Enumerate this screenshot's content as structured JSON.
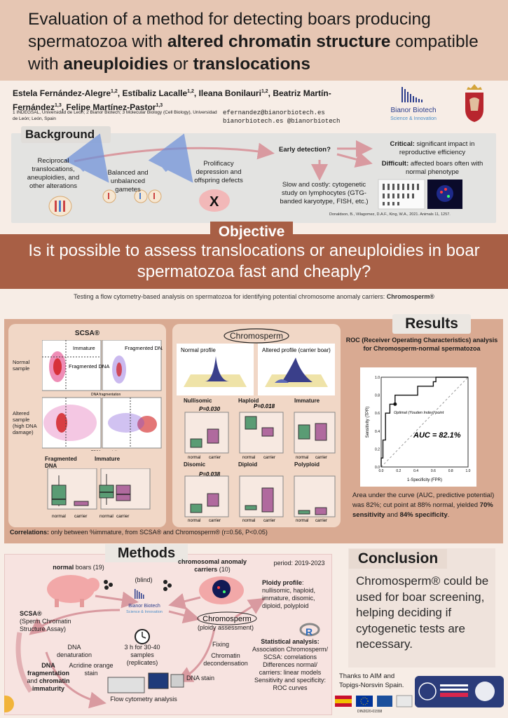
{
  "title": {
    "part1": "Evaluation of a method for detecting boars producing spermatozoa with ",
    "bold1": "altered chromatin structure",
    "part2": " compatible with ",
    "bold2": "aneuploidies",
    "part3": " or ",
    "bold3": "translocations"
  },
  "authors": {
    "list": [
      {
        "name": "Estela Fernández-Alegre",
        "aff": "1,2"
      },
      {
        "name": "Estíbaliz Lacalle",
        "aff": "1,2"
      },
      {
        "name": "Ileana Bonilauri",
        "aff": "1,2"
      },
      {
        "name": "Beatriz Martín-Fernández",
        "aff": "1,3"
      },
      {
        "name": "Felipe Martínez-Pastor",
        "aff": "1,3"
      }
    ],
    "affiliations": "1 INDEGSAL, Universidad de León; 2 Bianor Biotech; 3 Molecular Biology (Cell Biology), Universidad de León; León, Spain",
    "email1": "efernandez@bianorbiotech.es",
    "email2": "bianorbiotech.es @bianorbiotech"
  },
  "logos": {
    "bianor_name": "Bianor Biotech",
    "bianor_tag": "Science & Innovation"
  },
  "background": {
    "title": "Background",
    "reciprocal": "Reciprocal translocations, aneuploidies, and other alterations",
    "gametes": "Balanced and unbalanced gametes",
    "prolificacy": "Prolificacy depression and offspring defects",
    "early": "Early detection?",
    "critical_b": "Critical:",
    "critical": " significant impact in reproductive efficiency",
    "difficult_b": "Difficult:",
    "difficult": " affected boars often with normal phenotype",
    "slow": "Slow and costly: cytogenetic study on lymphocytes (GTG-banded karyotype, FISH, etc.)",
    "citation": "Donaldson, B., Villagomez, D.A.F., King, W.A., 2021. Animals 11, 1257."
  },
  "objective": {
    "title": "Objective",
    "question": "Is it possible to assess translocations or aneuploidies in boar spermatozoa fast and cheaply?",
    "sub": "Testing a flow cytometry-based analysis on spermatozoa for identifying potential chromosome anomaly carriers: ",
    "sub_bold": "Chromosperm®"
  },
  "results": {
    "title": "Results",
    "scsa": {
      "head": "SCSA®",
      "normal": "Normal sample",
      "altered": "Altered sample (high DNA damage)",
      "immature": "Immature",
      "fragmented": "Fragmented DNA",
      "fragmented2": "Fragmented DNA",
      "axis_x": "DNA fragmentation",
      "box1_title": "Fragmented DNA",
      "box2_title": "Immature"
    },
    "chromosperm": {
      "logo": "Chromosperm",
      "normal_profile": "Normal profile",
      "altered_profile": "Altered profile (carrier boar)",
      "plots": [
        {
          "title": "Nullisomic",
          "p": "P=0.030"
        },
        {
          "title": "Haploid",
          "p": "P=0.018"
        },
        {
          "title": "Immature",
          "p": ""
        },
        {
          "title": "Disomic",
          "p": "P=0.038"
        },
        {
          "title": "Diploid",
          "p": ""
        },
        {
          "title": "Polyploid",
          "p": ""
        }
      ],
      "x_normal": "normal",
      "x_carrier": "carrier",
      "y_unit": "%"
    },
    "correlations_b": "Correlations:",
    "correlations": " only between %immature, from SCSA® and Chromosperm® (r=0.56, P<0.05)",
    "roc": {
      "head": "ROC (Receiver Operating Characteristics) analysis for Chromosperm-normal spermatozoa",
      "auc_label": "AUC = 82.1%",
      "optimal": "Optimal (Youden Index) point",
      "xlabel": "1-Specificity (FPR)",
      "ylabel": "Sensitivity (TPR)",
      "ticks": [
        "0.0",
        "0.2",
        "0.4",
        "0.6",
        "0.8",
        "1.0"
      ],
      "text1": "Area under the curve (AUC, predictive potential) was 82%; cut point at 88% normal, yielded ",
      "text_b1": "70% sensitivity",
      "text2": " and ",
      "text_b2": "84% specificity",
      "text3": "."
    }
  },
  "chart_data": {
    "type": "line",
    "title": "",
    "xlabel": "1-Specificity (FPR)",
    "ylabel": "Sensitivity (TPR)",
    "xlim": [
      0,
      1
    ],
    "ylim": [
      0,
      1
    ],
    "x": [
      0,
      0.0,
      0.02,
      0.02,
      0.05,
      0.05,
      0.1,
      0.1,
      0.16,
      0.16,
      0.42,
      0.42,
      0.6,
      0.6,
      0.63,
      0.63,
      0.98,
      1.0
    ],
    "y": [
      0,
      0.1,
      0.1,
      0.3,
      0.3,
      0.6,
      0.6,
      0.7,
      0.7,
      0.8,
      0.8,
      0.9,
      0.9,
      0.95,
      0.95,
      1.0,
      1.0,
      1.0
    ],
    "optimal_point": [
      0.16,
      0.7
    ],
    "auc": 0.821,
    "grid": false
  },
  "methods": {
    "title": "Methods",
    "normal_boars_b": "normal",
    "normal_boars": " boars (19)",
    "carriers_b": "chromosomal anomaly carriers",
    "carriers": " (10)",
    "period": "period: 2019-2023",
    "blind": "(blind)",
    "scsa_b": "SCSA®",
    "scsa": "(Sperm Chromatin Structure Assay)",
    "chromo_note": "(ploidy assessment)",
    "ploidy_b": "Ploidy profile",
    "ploidy": ": nullisomic, haploid, immature, disomic, diploid, polyploid",
    "dna_denat": "DNA denaturation",
    "acridine": "Acridine orange stain",
    "time": "3 h for 30-40 samples (replicates)",
    "fixing": "Fixing",
    "decondensation": "Chromatin decondensation",
    "dna_stain": "DNA stain",
    "frag_b": "DNA fragmentation",
    "and": " and ",
    "imm_b": "chromatin immaturity",
    "flow": "Flow cytometry analysis",
    "stats_b": "Statistical analysis:",
    "stats": "Association Chromosperm/ SCSA: correlations Differences normal/ carriers: linear models Sensitivity and specificity: ROC curves"
  },
  "conclusion": {
    "title": "Conclusion",
    "text": "Chromosperm® could be used for boar screening, helping deciding if cytogenetic tests are necessary.",
    "thanks": "Thanks to AIM and Topigs-Norsvin Spain.",
    "funding_id": "DIN2020-01558"
  },
  "colors": {
    "title_bg": "#e6c6b3",
    "objective_bg": "#a85f45",
    "results_bg": "#d9aa92",
    "panel_bg": "#f1d7c6",
    "green_box": "#5a9c74",
    "purple_box": "#b06a9e",
    "arrow": "#d99aa0"
  }
}
